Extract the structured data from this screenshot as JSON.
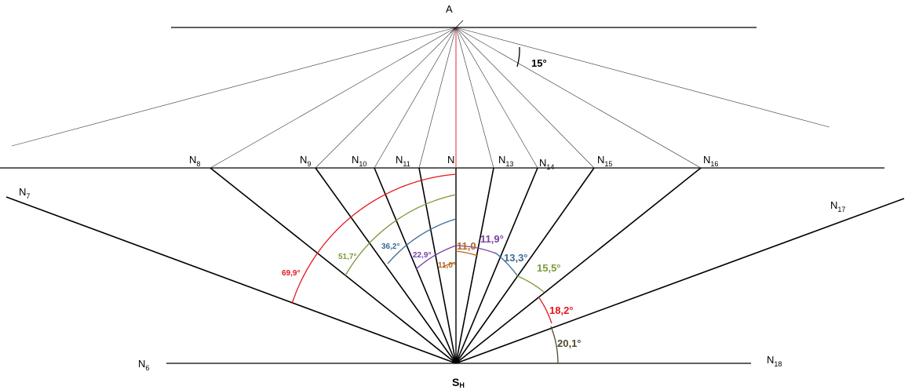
{
  "colors": {
    "red": "#e8161b",
    "green": "#7a9a3a",
    "blue": "#3d6b96",
    "purple": "#7b3ea6",
    "orange": "#b8651e",
    "olive": "#4f4a2e",
    "black": "#000000"
  },
  "labels": {
    "apex": "A",
    "station": {
      "main": "S",
      "sub": "H"
    },
    "nodes": [
      {
        "id": "n6",
        "main": "N",
        "sub": "6"
      },
      {
        "id": "n7",
        "main": "N",
        "sub": "7"
      },
      {
        "id": "n8",
        "main": "N",
        "sub": "8"
      },
      {
        "id": "n9",
        "main": "N",
        "sub": "9"
      },
      {
        "id": "n10",
        "main": "N",
        "sub": "10"
      },
      {
        "id": "n11",
        "main": "N",
        "sub": "11"
      },
      {
        "id": "n12",
        "main": "N",
        "sub": ""
      },
      {
        "id": "n13",
        "main": "N",
        "sub": "13"
      },
      {
        "id": "n14",
        "main": "N",
        "sub": "14"
      },
      {
        "id": "n15",
        "main": "N",
        "sub": "15"
      },
      {
        "id": "n16",
        "main": "N",
        "sub": "16"
      },
      {
        "id": "n17",
        "main": "N",
        "sub": "17"
      },
      {
        "id": "n18",
        "main": "N",
        "sub": "18"
      }
    ]
  },
  "angles": {
    "top": "15°",
    "left": [
      {
        "id": "a69",
        "text": "69,9°",
        "color": "red"
      },
      {
        "id": "a51",
        "text": "51,7°",
        "color": "green"
      },
      {
        "id": "a36",
        "text": "36,2°",
        "color": "blue"
      },
      {
        "id": "a22",
        "text": "22,9°",
        "color": "purple"
      },
      {
        "id": "a11l",
        "text": "11,0°",
        "color": "orange"
      }
    ],
    "right": [
      {
        "id": "a11r",
        "text": "11,0",
        "color": "orange"
      },
      {
        "id": "a119",
        "text": "11,9°",
        "color": "purple"
      },
      {
        "id": "a133",
        "text": "13,3°",
        "color": "blue"
      },
      {
        "id": "a155",
        "text": "15,5°",
        "color": "green"
      },
      {
        "id": "a182",
        "text": "18,2°",
        "color": "red"
      },
      {
        "id": "a201",
        "text": "20,1°",
        "color": "olive"
      }
    ]
  }
}
